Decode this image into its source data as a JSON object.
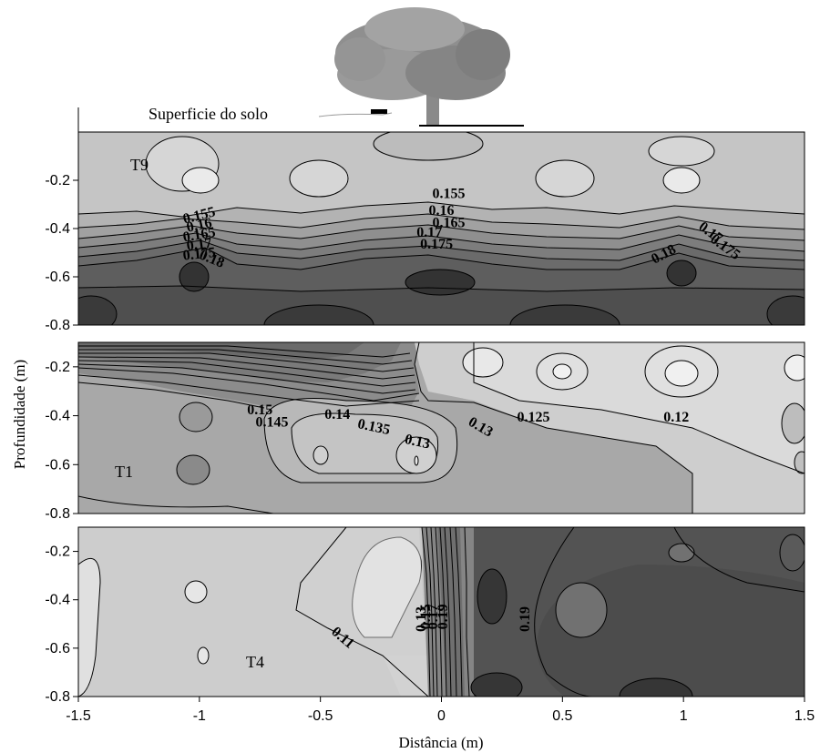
{
  "surface_label": "Superficie do solo",
  "chart_data": {
    "type": "heatmap",
    "subtype": "contour",
    "xlabel": "Distância (m)",
    "ylabel": "Profundidade (m)",
    "xlim": [
      -1.5,
      1.5
    ],
    "x_ticks": [
      "-1.5",
      "-1",
      "-0.5",
      "0",
      "0.5",
      "1",
      "1.5"
    ],
    "y_ticks": [
      "-0.2",
      "-0.4",
      "-0.6",
      "-0.8"
    ],
    "colormap": "grayscale (darker = higher value)",
    "panels": [
      {
        "name": "T9",
        "ylim": [
          -0.8,
          0
        ],
        "contour_labels": [
          {
            "text": "0.155",
            "x": -1.0,
            "y": -0.35
          },
          {
            "text": "0.16",
            "x": -1.0,
            "y": -0.39
          },
          {
            "text": "0.165",
            "x": -1.0,
            "y": -0.43
          },
          {
            "text": "0.17",
            "x": -1.0,
            "y": -0.47
          },
          {
            "text": "0.175",
            "x": -1.0,
            "y": -0.51
          },
          {
            "text": "0.18",
            "x": -0.95,
            "y": -0.53
          },
          {
            "text": "0.155",
            "x": 0.03,
            "y": -0.26
          },
          {
            "text": "0.16",
            "x": 0.0,
            "y": -0.33
          },
          {
            "text": "0.165",
            "x": 0.03,
            "y": -0.38
          },
          {
            "text": "0.17",
            "x": -0.05,
            "y": -0.42
          },
          {
            "text": "0.175",
            "x": -0.02,
            "y": -0.47
          },
          {
            "text": "0.18",
            "x": 0.92,
            "y": -0.51
          },
          {
            "text": "0.17",
            "x": 1.11,
            "y": -0.42
          },
          {
            "text": "0.175",
            "x": 1.17,
            "y": -0.48
          }
        ]
      },
      {
        "name": "T1",
        "ylim": [
          -0.8,
          -0.1
        ],
        "contour_labels": [
          {
            "text": "0.15",
            "x": -0.75,
            "y": -0.38
          },
          {
            "text": "0.145",
            "x": -0.7,
            "y": -0.43
          },
          {
            "text": "0.14",
            "x": -0.43,
            "y": -0.4
          },
          {
            "text": "0.135",
            "x": -0.28,
            "y": -0.45
          },
          {
            "text": "0.13",
            "x": -0.1,
            "y": -0.51
          },
          {
            "text": "0.13",
            "x": 0.16,
            "y": -0.45
          },
          {
            "text": "0.125",
            "x": 0.38,
            "y": -0.41
          },
          {
            "text": "0.12",
            "x": 0.97,
            "y": -0.41
          }
        ]
      },
      {
        "name": "T4",
        "ylim": [
          -0.8,
          -0.1
        ],
        "contour_labels": [
          {
            "text": "0.11",
            "x": -0.41,
            "y": -0.56
          },
          {
            "text": "0.13",
            "x": -0.08,
            "y": -0.48
          },
          {
            "text": "0.15",
            "x": -0.06,
            "y": -0.47
          },
          {
            "text": "0.17",
            "x": -0.03,
            "y": -0.47
          },
          {
            "text": "0.19",
            "x": 0.01,
            "y": -0.47
          },
          {
            "text": "0.19",
            "x": 0.35,
            "y": -0.48
          }
        ]
      }
    ]
  }
}
